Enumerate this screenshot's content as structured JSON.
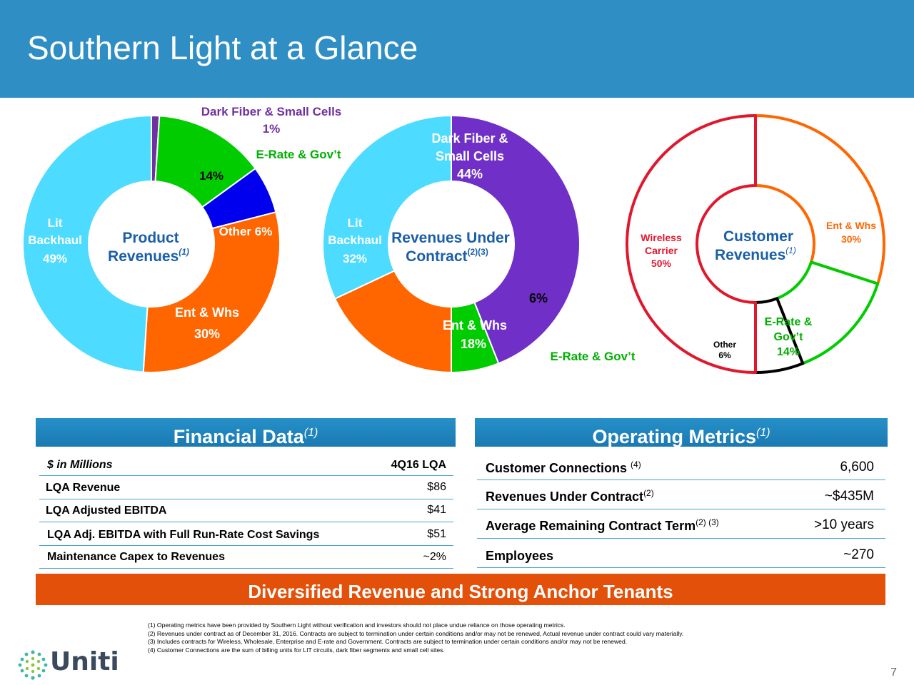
{
  "title": "Southern Light at a Glance",
  "chart_data": [
    {
      "type": "pie",
      "center_label": "Product",
      "center_label2": "Revenues",
      "center_sup": "(1)",
      "slices": [
        {
          "name": "Dark Fiber & Small Cells",
          "value": 1,
          "label": "1%",
          "color": "#7030a0"
        },
        {
          "name": "E-Rate & Gov't",
          "value": 14,
          "label": "14%",
          "color": "#00cc00"
        },
        {
          "name": "Other",
          "value": 6,
          "label": "6%",
          "color": "#0000ee"
        },
        {
          "name": "Ent & Whs",
          "value": 30,
          "label": "30%",
          "color": "#ff6600"
        },
        {
          "name": "Lit Backhaul",
          "value": 49,
          "label": "49%",
          "color": "#4ddbff"
        }
      ],
      "text": {
        "dark_fiber": "Dark Fiber & Small Cells",
        "dark_fiber_pct": "1%",
        "erate": "E-Rate & Gov’t",
        "erate_pct": "14%",
        "other": "Other 6%",
        "ent_whs": "Ent & Whs",
        "ent_whs_pct": "30%",
        "lit": "Lit",
        "backhaul": "Backhaul",
        "lit_pct": "49%"
      }
    },
    {
      "type": "pie",
      "center_label": "Revenues Under",
      "center_label2": "Contract",
      "center_sup": "(2)(3)",
      "slices": [
        {
          "name": "Dark Fiber & Small Cells",
          "value": 44,
          "label": "44%",
          "color": "#7030c8"
        },
        {
          "name": "E-Rate & Gov't",
          "value": 6,
          "label": "6%",
          "color": "#00cc00"
        },
        {
          "name": "Ent & Whs",
          "value": 18,
          "label": "18%",
          "color": "#ff6600"
        },
        {
          "name": "Lit Backhaul",
          "value": 32,
          "label": "32%",
          "color": "#4ddbff"
        }
      ],
      "text": {
        "dark_fiber_1": "Dark Fiber &",
        "dark_fiber_2": "Small Cells",
        "dark_fiber_pct": "44%",
        "erate_pct": "6%",
        "erate": "E-Rate & Gov’t",
        "ent_whs": "Ent & Whs",
        "ent_whs_pct": "18%",
        "lit": "Lit",
        "backhaul": "Backhaul",
        "lit_pct": "32%"
      }
    },
    {
      "type": "pie",
      "center_label": "Customer",
      "center_label2": "Revenues",
      "center_sup": "(1)",
      "slices": [
        {
          "name": "Ent & Whs",
          "value": 30,
          "label": "30%",
          "color": "#ff6600"
        },
        {
          "name": "E-Rate & Gov't",
          "value": 14,
          "label": "14%",
          "color": "#00cc00"
        },
        {
          "name": "Other",
          "value": 6,
          "label": "6%",
          "color": "#000000"
        },
        {
          "name": "Wireless Carrier",
          "value": 50,
          "label": "50%",
          "color": "#e0182d"
        }
      ],
      "text": {
        "ent_whs": "Ent & Whs",
        "ent_whs_pct": "30%",
        "erate_1": "E-Rate &",
        "erate_2": "Gov’t",
        "erate_pct": "14%",
        "other": "Other",
        "other_pct": "6%",
        "wireless": "Wireless",
        "carrier": "Carrier",
        "wireless_pct": "50%"
      }
    }
  ],
  "financial": {
    "header": "Financial Data",
    "header_sup": "(1)",
    "col_label": "$ in Millions",
    "col_period": "4Q16 LQA",
    "rows": [
      {
        "label": "LQA Revenue",
        "value": "$86"
      },
      {
        "label": "LQA Adjusted EBITDA",
        "value": "$41"
      },
      {
        "label": "LQA Adj.  EBITDA with Full Run-Rate Cost Savings",
        "value": "$51"
      },
      {
        "label": "Maintenance Capex to Revenues",
        "value": "~2%"
      }
    ]
  },
  "operating": {
    "header": "Operating Metrics",
    "header_sup": "(1)",
    "rows": [
      {
        "label": "Customer Connections ",
        "sup": "(4)",
        "value": "6,600"
      },
      {
        "label": "Revenues Under Contract",
        "sup": "(2)",
        "value": "~$435M"
      },
      {
        "label": "Average Remaining Contract Term",
        "sup": "(2) (3)",
        "value": ">10 years"
      },
      {
        "label": "Employees",
        "sup": "",
        "value": "~270"
      }
    ]
  },
  "banner": "Diversified Revenue and Strong Anchor Tenants",
  "footnotes": [
    "(1) Operating metrics have been provided by Southern Light without verification and investors should not place undue reliance on those operating metrics.",
    "(2) Revenues under contract as of December 31, 2016. Contracts are subject to termination under certain conditions and/or may not be renewed, Actual revenue under contract could vary materially.",
    "(3) Includes contracts for Wireless, Wholesale, Enterprise and E-rate and Government.  Contracts are subject to termination under certain conditions and/or may not be renewed.",
    "(4) Customer Connections are the sum of billing units for LIT circuits, dark fiber segments and small cell sites."
  ],
  "logo_text": "Uniti",
  "page_number": "7",
  "colors": {
    "header_bg": "#2f8ec4",
    "banner_bg": "#e2500a"
  }
}
